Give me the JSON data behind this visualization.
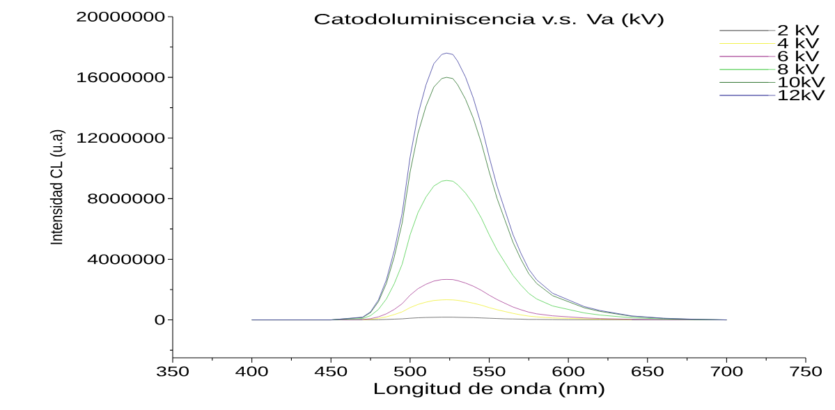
{
  "chart_data": {
    "type": "line",
    "title": "Catodoluminiscencia v.s. Va (kV)",
    "xlabel": "Longitud de onda (nm)",
    "ylabel": "Intensidad CL (u.a)",
    "x": [
      400,
      450,
      460,
      470,
      475,
      480,
      485,
      490,
      495,
      500,
      505,
      510,
      515,
      520,
      523,
      527,
      530,
      535,
      540,
      545,
      550,
      555,
      560,
      565,
      570,
      575,
      580,
      590,
      600,
      610,
      620,
      640,
      660,
      680,
      700
    ],
    "series": [
      {
        "name": "2 kV",
        "color": "#6a6a6a",
        "values": [
          0,
          0,
          0,
          0,
          10000,
          10000,
          30000,
          50000,
          70000,
          110000,
          140000,
          160000,
          170000,
          180000,
          180000,
          180000,
          170000,
          160000,
          150000,
          130000,
          110000,
          90000,
          70000,
          60000,
          50000,
          30000,
          30000,
          20000,
          10000,
          10000,
          10000,
          0,
          0,
          0,
          0
        ]
      },
      {
        "name": "4 kV",
        "color": "#f2f24a",
        "values": [
          null,
          null,
          null,
          10000,
          40000,
          100000,
          200000,
          350000,
          530000,
          810000,
          1020000,
          1170000,
          1280000,
          1320000,
          1330000,
          1320000,
          1290000,
          1210000,
          1100000,
          970000,
          810000,
          670000,
          550000,
          430000,
          330000,
          250000,
          200000,
          130000,
          100000,
          70000,
          50000,
          20000,
          null,
          null,
          null
        ]
      },
      {
        "name": "6 kV",
        "color": "#b050a0",
        "values": [
          0,
          0,
          10000,
          30000,
          80000,
          200000,
          400000,
          690000,
          1070000,
          1630000,
          2060000,
          2350000,
          2560000,
          2660000,
          2670000,
          2660000,
          2590000,
          2430000,
          2220000,
          1950000,
          1630000,
          1340000,
          1090000,
          850000,
          670000,
          510000,
          400000,
          270000,
          200000,
          130000,
          90000,
          40000,
          20000,
          10000,
          0
        ]
      },
      {
        "name": "8 kV",
        "color": "#5fd35f",
        "values": [
          0,
          0,
          50000,
          90000,
          280000,
          690000,
          1380000,
          2390000,
          3680000,
          5610000,
          7080000,
          8100000,
          8830000,
          9150000,
          9200000,
          9150000,
          8920000,
          8370000,
          7640000,
          6720000,
          5610000,
          4600000,
          3770000,
          2940000,
          2300000,
          1750000,
          1380000,
          920000,
          690000,
          460000,
          320000,
          140000,
          60000,
          20000,
          0
        ]
      },
      {
        "name": "10kV",
        "color": "#3f803f",
        "values": [
          0,
          0,
          80000,
          160000,
          480000,
          1200000,
          2400000,
          4160000,
          6400000,
          9760000,
          12320000,
          14080000,
          15360000,
          15920000,
          16000000,
          15920000,
          15520000,
          14560000,
          13280000,
          11680000,
          9760000,
          8000000,
          6560000,
          5120000,
          4000000,
          3040000,
          2400000,
          1600000,
          1200000,
          800000,
          560000,
          240000,
          100000,
          30000,
          0
        ]
      },
      {
        "name": "12kV",
        "color": "#4f4fa8",
        "values": [
          0,
          0,
          90000,
          180000,
          530000,
          1320000,
          2640000,
          4580000,
          7040000,
          10740000,
          13550000,
          15490000,
          16900000,
          17510000,
          17600000,
          17510000,
          17070000,
          16020000,
          14610000,
          12850000,
          10740000,
          8800000,
          7220000,
          5630000,
          4400000,
          3340000,
          2640000,
          1760000,
          1320000,
          880000,
          620000,
          260000,
          110000,
          40000,
          0
        ]
      }
    ],
    "xlim": [
      350,
      750
    ],
    "xticks": [
      350,
      {
        "value": 375,
        "label": null
      },
      400,
      {
        "value": 425,
        "label": null
      },
      450,
      {
        "value": 475,
        "label": null
      },
      500,
      {
        "value": 525,
        "label": null
      },
      550,
      {
        "value": 575,
        "label": null
      },
      600,
      {
        "value": 625,
        "label": null
      },
      650,
      {
        "value": 675,
        "label": null
      },
      700,
      {
        "value": 725,
        "label": null
      },
      750
    ],
    "ylim": [
      -2500000,
      20000000
    ],
    "yticks": [
      {
        "value": -2000000,
        "label": null
      },
      0,
      {
        "value": 2000000,
        "label": null
      },
      4000000,
      {
        "value": 6000000,
        "label": null
      },
      8000000,
      {
        "value": 10000000,
        "label": null
      },
      12000000,
      {
        "value": 14000000,
        "label": null
      },
      16000000,
      {
        "value": 18000000,
        "label": null
      },
      20000000
    ],
    "legend": "top right",
    "grid": false,
    "marker": "none",
    "line_style": "solid"
  }
}
